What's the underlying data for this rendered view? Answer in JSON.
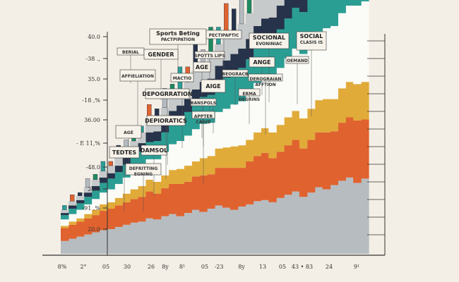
{
  "chart_data": {
    "type": "area",
    "title": "Sports Beting",
    "subtitle": "PACTPIPATION",
    "title_extra": "PECTIPAPTIC",
    "y_ticks": [
      "40.0",
      "-38 .,",
      "35.0",
      "-18 ,%",
      "36.00",
      "- E 11,%",
      "-48.0",
      "24.0",
      "-91 ,%",
      "20.0"
    ],
    "x_ticks": [
      "8%",
      "2°",
      "05",
      "30",
      "26",
      "8y",
      "8¹",
      "05",
      "-23",
      "8y",
      "13",
      "05",
      "43 • 83",
      "24",
      "9¹"
    ],
    "ylim": [
      20,
      41
    ],
    "colors": {
      "background": "#f4efe6",
      "orange": "#e0622f",
      "teal": "#2b9e94",
      "dark": "#26334a",
      "gray": "#b7bcc0",
      "white": "#fbfbf7",
      "mustard": "#e1ab3a",
      "green": "#1f8a5f"
    },
    "x": [
      0,
      1,
      2,
      3,
      4,
      5,
      6,
      7,
      8,
      9,
      10,
      11,
      12,
      13,
      14,
      15,
      16,
      17,
      18,
      19,
      20,
      21,
      22,
      23,
      24,
      25,
      26,
      27,
      28,
      29,
      30,
      31,
      32,
      33,
      34,
      35,
      36,
      37,
      38,
      39
    ],
    "series": [
      {
        "name": "gray base",
        "color": "#b7bcc0",
        "values": [
          21.2,
          21.4,
          21.6,
          21.8,
          22.0,
          22.2,
          22.3,
          22.5,
          22.7,
          22.9,
          23.0,
          23.3,
          23.2,
          23.5,
          23.7,
          23.5,
          23.8,
          24.1,
          23.9,
          24.2,
          24.5,
          24.3,
          24.1,
          24.4,
          24.6,
          24.9,
          25.0,
          24.8,
          25.2,
          25.5,
          25.8,
          25.3,
          25.7,
          26.2,
          26.0,
          26.4,
          26.8,
          27.1,
          26.6,
          27.0
        ]
      },
      {
        "name": "orange",
        "color": "#e0622f",
        "values": [
          1.2,
          1.3,
          1.4,
          1.5,
          1.6,
          1.8,
          1.9,
          2.0,
          2.1,
          2.2,
          2.3,
          2.5,
          2.4,
          2.6,
          2.8,
          3.0,
          2.9,
          3.1,
          3.4,
          3.2,
          3.5,
          3.7,
          3.9,
          3.6,
          4.0,
          4.2,
          4.4,
          4.1,
          4.3,
          4.6,
          4.8,
          4.5,
          4.9,
          5.1,
          5.3,
          5.0,
          5.4,
          5.6,
          5.8,
          5.5
        ]
      },
      {
        "name": "mustard",
        "color": "#e1ab3a",
        "values": [
          0.2,
          0.3,
          0.3,
          0.4,
          0.5,
          0.6,
          0.6,
          0.7,
          0.8,
          0.9,
          1.0,
          1.1,
          1.1,
          1.2,
          1.3,
          1.4,
          1.5,
          1.4,
          1.6,
          1.7,
          1.8,
          1.9,
          2.0,
          2.1,
          2.0,
          2.2,
          2.3,
          2.4,
          2.5,
          2.6,
          2.7,
          2.8,
          2.9,
          3.0,
          3.1,
          3.0,
          3.2,
          3.3,
          3.4,
          3.5
        ]
      },
      {
        "name": "white",
        "color": "#fbfbf7",
        "values": [
          0.6,
          0.7,
          0.8,
          0.9,
          1.0,
          1.1,
          1.2,
          1.3,
          1.5,
          1.6,
          1.8,
          1.9,
          2.1,
          2.2,
          2.4,
          2.6,
          2.8,
          3.0,
          3.2,
          3.1,
          3.4,
          3.6,
          3.9,
          4.1,
          4.3,
          4.6,
          4.8,
          5.1,
          5.3,
          5.5,
          5.8,
          6.0,
          6.2,
          6.4,
          6.6,
          6.8,
          7.0,
          7.1,
          7.3,
          7.5
        ]
      },
      {
        "name": "teal",
        "color": "#2b9e94",
        "values": [
          0.4,
          0.5,
          0.6,
          0.7,
          0.8,
          0.9,
          1.0,
          1.1,
          1.2,
          1.3,
          1.4,
          1.6,
          1.7,
          1.8,
          2.0,
          2.1,
          2.2,
          2.4,
          2.5,
          2.6,
          2.8,
          2.9,
          3.0,
          3.1,
          3.2,
          3.3,
          3.4,
          3.5,
          3.6,
          3.7,
          3.8,
          3.9,
          4.0,
          4.1,
          4.2,
          4.3,
          4.4,
          4.5,
          4.6,
          4.7
        ]
      },
      {
        "name": "dark",
        "color": "#26334a",
        "values": [
          0.2,
          0.3,
          0.3,
          0.4,
          0.4,
          0.5,
          0.5,
          0.6,
          0.7,
          0.7,
          0.8,
          0.9,
          0.9,
          1.0,
          1.1,
          1.2,
          1.2,
          1.3,
          1.4,
          1.5,
          1.5,
          1.6,
          1.7,
          1.8,
          1.9,
          2.0,
          2.0,
          2.1,
          2.2,
          2.3,
          2.4,
          2.5,
          2.6,
          2.7,
          2.8,
          2.9,
          3.0,
          3.1,
          3.2,
          3.3
        ]
      },
      {
        "name": "light gray",
        "color": "#c7cacb",
        "values": [
          0.3,
          0.4,
          0.4,
          0.5,
          0.6,
          0.6,
          0.7,
          0.8,
          0.9,
          0.9,
          1.0,
          1.1,
          1.2,
          1.3,
          1.4,
          1.5,
          1.6,
          1.7,
          1.8,
          1.9,
          2.0,
          2.1,
          2.2,
          2.3,
          2.4,
          2.5,
          2.6,
          2.7,
          2.8,
          2.9,
          3.0,
          3.1,
          3.2,
          3.3,
          3.4,
          3.5,
          3.6,
          3.7,
          3.8,
          3.9
        ]
      }
    ],
    "spikes": [
      0.4,
      0.6,
      0.3,
      0.8,
      0.5,
      0.9,
      0.4,
      1.1,
      0.7,
      1.3,
      0.6,
      1.5,
      0.9,
      1.8,
      1.1,
      2.1,
      1.4,
      2.6,
      1.2,
      2.9,
      1.6,
      3.2,
      2.0,
      3.6,
      2.4,
      3.0,
      3.9,
      2.8,
      4.2,
      3.3,
      4.6,
      3.8,
      5.0,
      4.3,
      5.4,
      4.7,
      6.0,
      5.2,
      6.5,
      5.8
    ],
    "spike_colors": [
      "#2b9e94",
      "#e0622f",
      "#26334a",
      "#b7bcc0",
      "#1f8a5f"
    ],
    "annotations": [
      "Sports Beting",
      "PACTPIPATION",
      "PECTIPAPTIC",
      "SOCIONAL",
      "EVONINIAC",
      "SOCIAL",
      "CLASIS IS",
      "BERIAL",
      "GENDER",
      "SPOTTS LIPS",
      "AGE",
      "ANGE",
      "OEMAND",
      "AFFIELIATION",
      "MACTIO",
      "BEOGRACB",
      "AIGE",
      "DEROGRAIAN",
      "AFFTION",
      "DEPOGRRATION",
      "ERMA",
      "DEGRINS",
      "DEPIORATICS",
      "BANSPOLS",
      "APPTER",
      "CAIUD",
      "AGE",
      "DAMSOL",
      "TEDTES",
      "DEFRITTING",
      "EGNING"
    ]
  }
}
